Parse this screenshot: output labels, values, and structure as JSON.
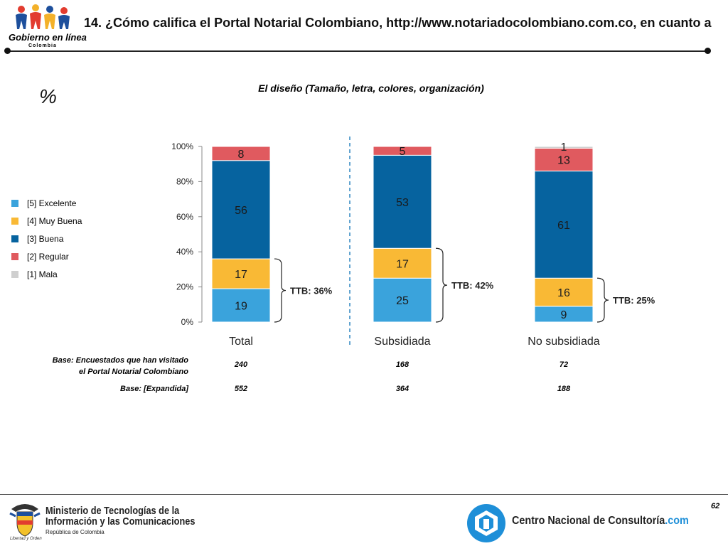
{
  "header": {
    "title": "14. ¿Cómo califica el Portal Notarial Colombiano, http://www.notariadocolombiano.com.co, en cuanto a",
    "logo_line1": "Gobierno en línea",
    "logo_line2": "Colombia"
  },
  "unit_symbol": "%",
  "legend": [
    {
      "label": "[5] Excelente",
      "color": "#3aa3dc"
    },
    {
      "label": "[4] Muy Buena",
      "color": "#f9b935"
    },
    {
      "label": "[3] Buena",
      "color": "#06639f"
    },
    {
      "label": "[2] Regular",
      "color": "#e05a5f"
    },
    {
      "label": "[1] Mala",
      "color": "#cfcfcf"
    }
  ],
  "chart_data": {
    "type": "bar",
    "stacked": true,
    "title": "El diseño (Tamaño, letra, colores, organización)",
    "categories": [
      "Total",
      "Subsidiada",
      "No subsidiada"
    ],
    "ylim": [
      0,
      100
    ],
    "yticks": [
      "0%",
      "20%",
      "40%",
      "60%",
      "80%",
      "100%"
    ],
    "series": [
      {
        "name": "[5] Excelente",
        "color": "#3aa3dc",
        "values": [
          19,
          25,
          9
        ]
      },
      {
        "name": "[4] Muy Buena",
        "color": "#f9b935",
        "values": [
          17,
          17,
          16
        ]
      },
      {
        "name": "[3] Buena",
        "color": "#06639f",
        "values": [
          56,
          53,
          61
        ]
      },
      {
        "name": "[2] Regular",
        "color": "#e05a5f",
        "values": [
          8,
          5,
          13
        ]
      },
      {
        "name": "[1] Mala",
        "color": "#cfcfcf",
        "values": [
          0,
          0,
          1
        ]
      }
    ],
    "ttb_labels": [
      "TTB: 36%",
      "TTB: 42%",
      "TTB: 25%"
    ]
  },
  "bases": [
    {
      "label_line1": "Base: Encuestados que han visitado",
      "label_line2": "el Portal Notarial Colombiano",
      "values": [
        "240",
        "168",
        "72"
      ]
    },
    {
      "label_line1": "Base: [Expandida]",
      "label_line2": "",
      "values": [
        "552",
        "364",
        "188"
      ]
    }
  ],
  "footer": {
    "page_number": "62",
    "ministry_line1": "Ministerio de Tecnologías de la",
    "ministry_line2": "Información y las Comunicaciones",
    "ministry_sub": "República de Colombia",
    "motto": "Libertad y Orden",
    "cnc_name": "Centro Nacional de Consultoría",
    "cnc_suffix": ".com"
  }
}
